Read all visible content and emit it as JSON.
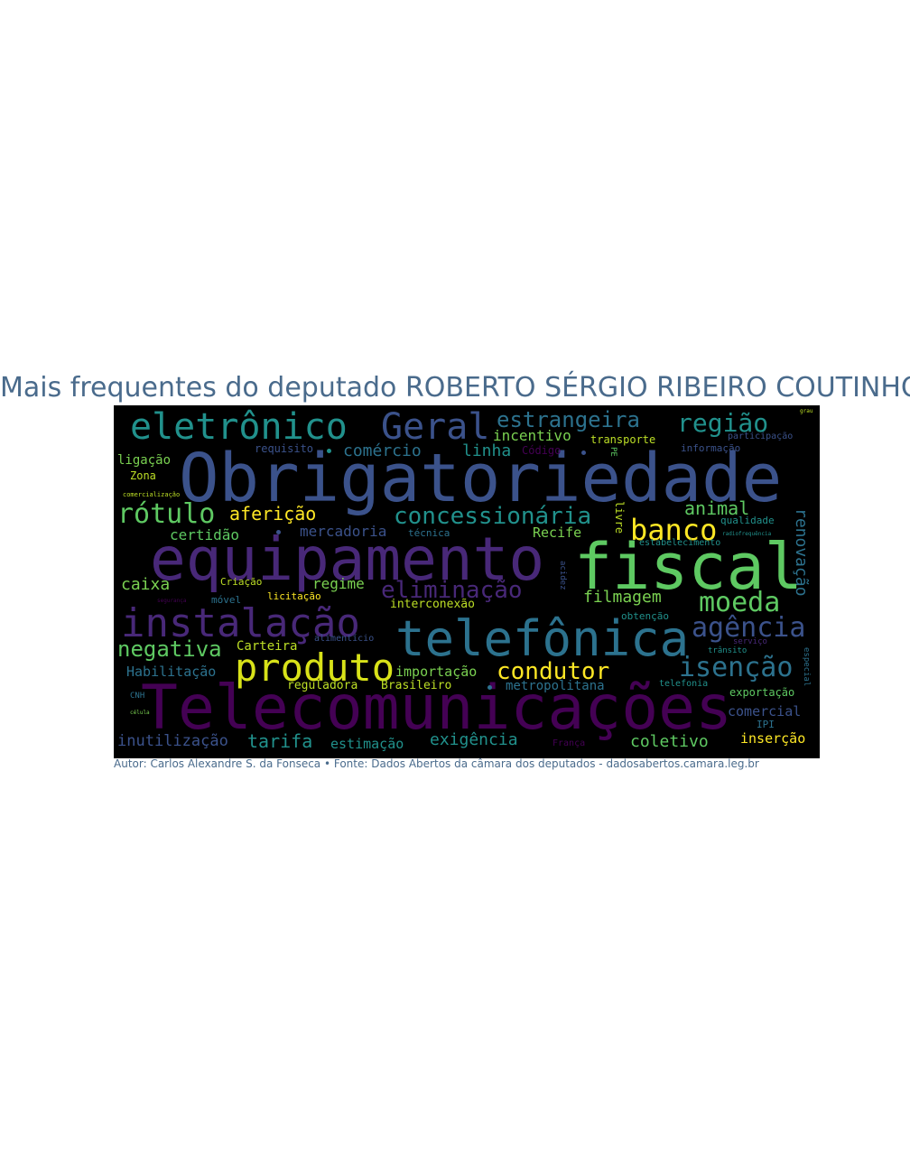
{
  "title": "Mais frequentes do deputado ROBERTO SÉRGIO RIBEIRO COUTINHO",
  "footer": "Autor: Carlos Alexandre S. da Fonseca • Fonte: Dados Abertos da câmara dos deputados - dadosabertos.camara.leg.br",
  "colors": {
    "background": "#000000",
    "title": "#4a6b8c",
    "palette": [
      "#440154",
      "#3b528b",
      "#21918c",
      "#5ec962",
      "#fde725"
    ]
  },
  "words": [
    "Obrigatoriedade",
    "Telecomunicações",
    "equipamento",
    "fiscal",
    "telefônica",
    "instalação",
    "produto",
    "eletrônico",
    "Geral",
    "estrangeira",
    "região",
    "concessionária",
    "rótulo",
    "banco",
    "aferição",
    "eliminação",
    "moeda",
    "agência",
    "isenção",
    "condutor",
    "negativa",
    "caixa",
    "filmagem",
    "animal",
    "renovação",
    "comércio",
    "linha",
    "incentivo",
    "transporte",
    "requisito",
    "Código",
    "informação",
    "participação",
    "ligação",
    "Zona",
    "comercialização",
    "certidão",
    "mercadoria",
    "técnica",
    "Recife",
    "qualidade",
    "estabelecimento",
    "regime",
    "Criação",
    "móvel",
    "licitação",
    "interconexão",
    "obtenção",
    "Carteira",
    "alimentício",
    "Habilitação",
    "importação",
    "reguladora",
    "Brasileiro",
    "metropolitana",
    "telefonia",
    "exportação",
    "trânsito",
    "serviço",
    "especial",
    "CNH",
    "célula",
    "comercial",
    "IPI",
    "inutilização",
    "tarifa",
    "estimação",
    "exigência",
    "França",
    "coletivo",
    "inserção",
    "livre",
    "PE",
    "acidez",
    "segurança",
    "radiofrequência",
    "grau"
  ]
}
